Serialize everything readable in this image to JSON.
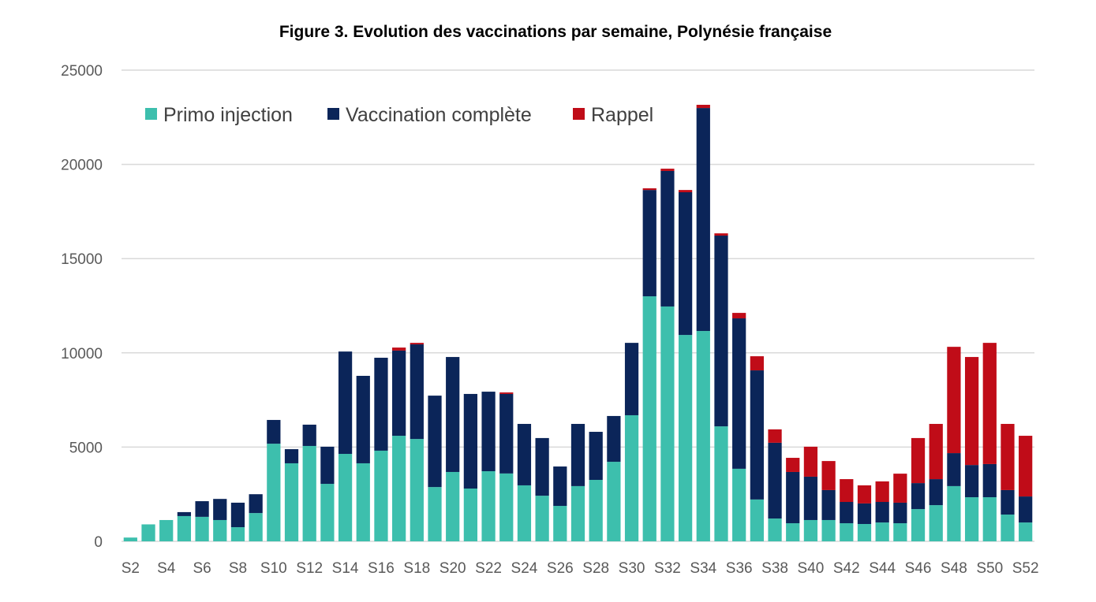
{
  "chart_data": {
    "type": "bar",
    "stacked": true,
    "title": "Figure 3. Evolution des vaccinations par semaine, Polynésie française",
    "xlabel": "",
    "ylabel": "",
    "ylim": [
      0,
      25000
    ],
    "yticks": [
      "0",
      "5000",
      "10000",
      "15000",
      "20000",
      "25000"
    ],
    "grid": true,
    "legend_position": "top-left",
    "categories": [
      "S2",
      "S3",
      "S4",
      "S5",
      "S6",
      "S7",
      "S8",
      "S9",
      "S10",
      "S11",
      "S12",
      "S13",
      "S14",
      "S15",
      "S16",
      "S17",
      "S18",
      "S19",
      "S20",
      "S21",
      "S22",
      "S23",
      "S24",
      "S25",
      "S26",
      "S27",
      "S28",
      "S29",
      "S30",
      "S31",
      "S32",
      "S33",
      "S34",
      "S35",
      "S36",
      "S37",
      "S38",
      "S39",
      "S40",
      "S41",
      "S42",
      "S43",
      "S44",
      "S45",
      "S46",
      "S47",
      "S48",
      "S49",
      "S50",
      "S51",
      "S52"
    ],
    "series": [
      {
        "name": "Primo injection",
        "color": "#3dbfad",
        "values": [
          200,
          900,
          1130,
          1340,
          1300,
          1130,
          750,
          1500,
          5180,
          4140,
          5060,
          3050,
          4640,
          4140,
          4810,
          5600,
          5430,
          2880,
          3680,
          2800,
          3720,
          3600,
          2970,
          2420,
          1880,
          2930,
          3260,
          4220,
          6690,
          13000,
          12460,
          10950,
          11160,
          6100,
          3850,
          2220,
          1210,
          960,
          1130,
          1130,
          960,
          920,
          1000,
          960,
          1710,
          1920,
          2930,
          2340,
          2340,
          1420,
          1000
        ]
      },
      {
        "name": "Vaccination complète",
        "color": "#0b2559",
        "values": [
          0,
          0,
          0,
          210,
          830,
          1120,
          1300,
          1000,
          1260,
          750,
          1130,
          1970,
          5430,
          4640,
          4930,
          4520,
          5020,
          4850,
          6100,
          5020,
          4220,
          4220,
          3260,
          3060,
          2090,
          3300,
          2550,
          2430,
          3840,
          5640,
          7190,
          7570,
          11830,
          10120,
          7980,
          6850,
          4020,
          2720,
          2300,
          1590,
          1130,
          1090,
          1090,
          1090,
          1380,
          1380,
          1750,
          1710,
          1760,
          1300,
          1380
        ]
      },
      {
        "name": "Rappel",
        "color": "#c00c18",
        "values": [
          0,
          0,
          0,
          0,
          0,
          0,
          0,
          0,
          0,
          0,
          0,
          0,
          0,
          0,
          0,
          160,
          80,
          0,
          0,
          0,
          0,
          80,
          0,
          0,
          0,
          0,
          0,
          0,
          0,
          90,
          120,
          120,
          170,
          120,
          290,
          750,
          710,
          750,
          1590,
          1540,
          1210,
          960,
          1090,
          1540,
          2390,
          2930,
          5640,
          5730,
          6430,
          3510,
          3220
        ]
      }
    ]
  }
}
